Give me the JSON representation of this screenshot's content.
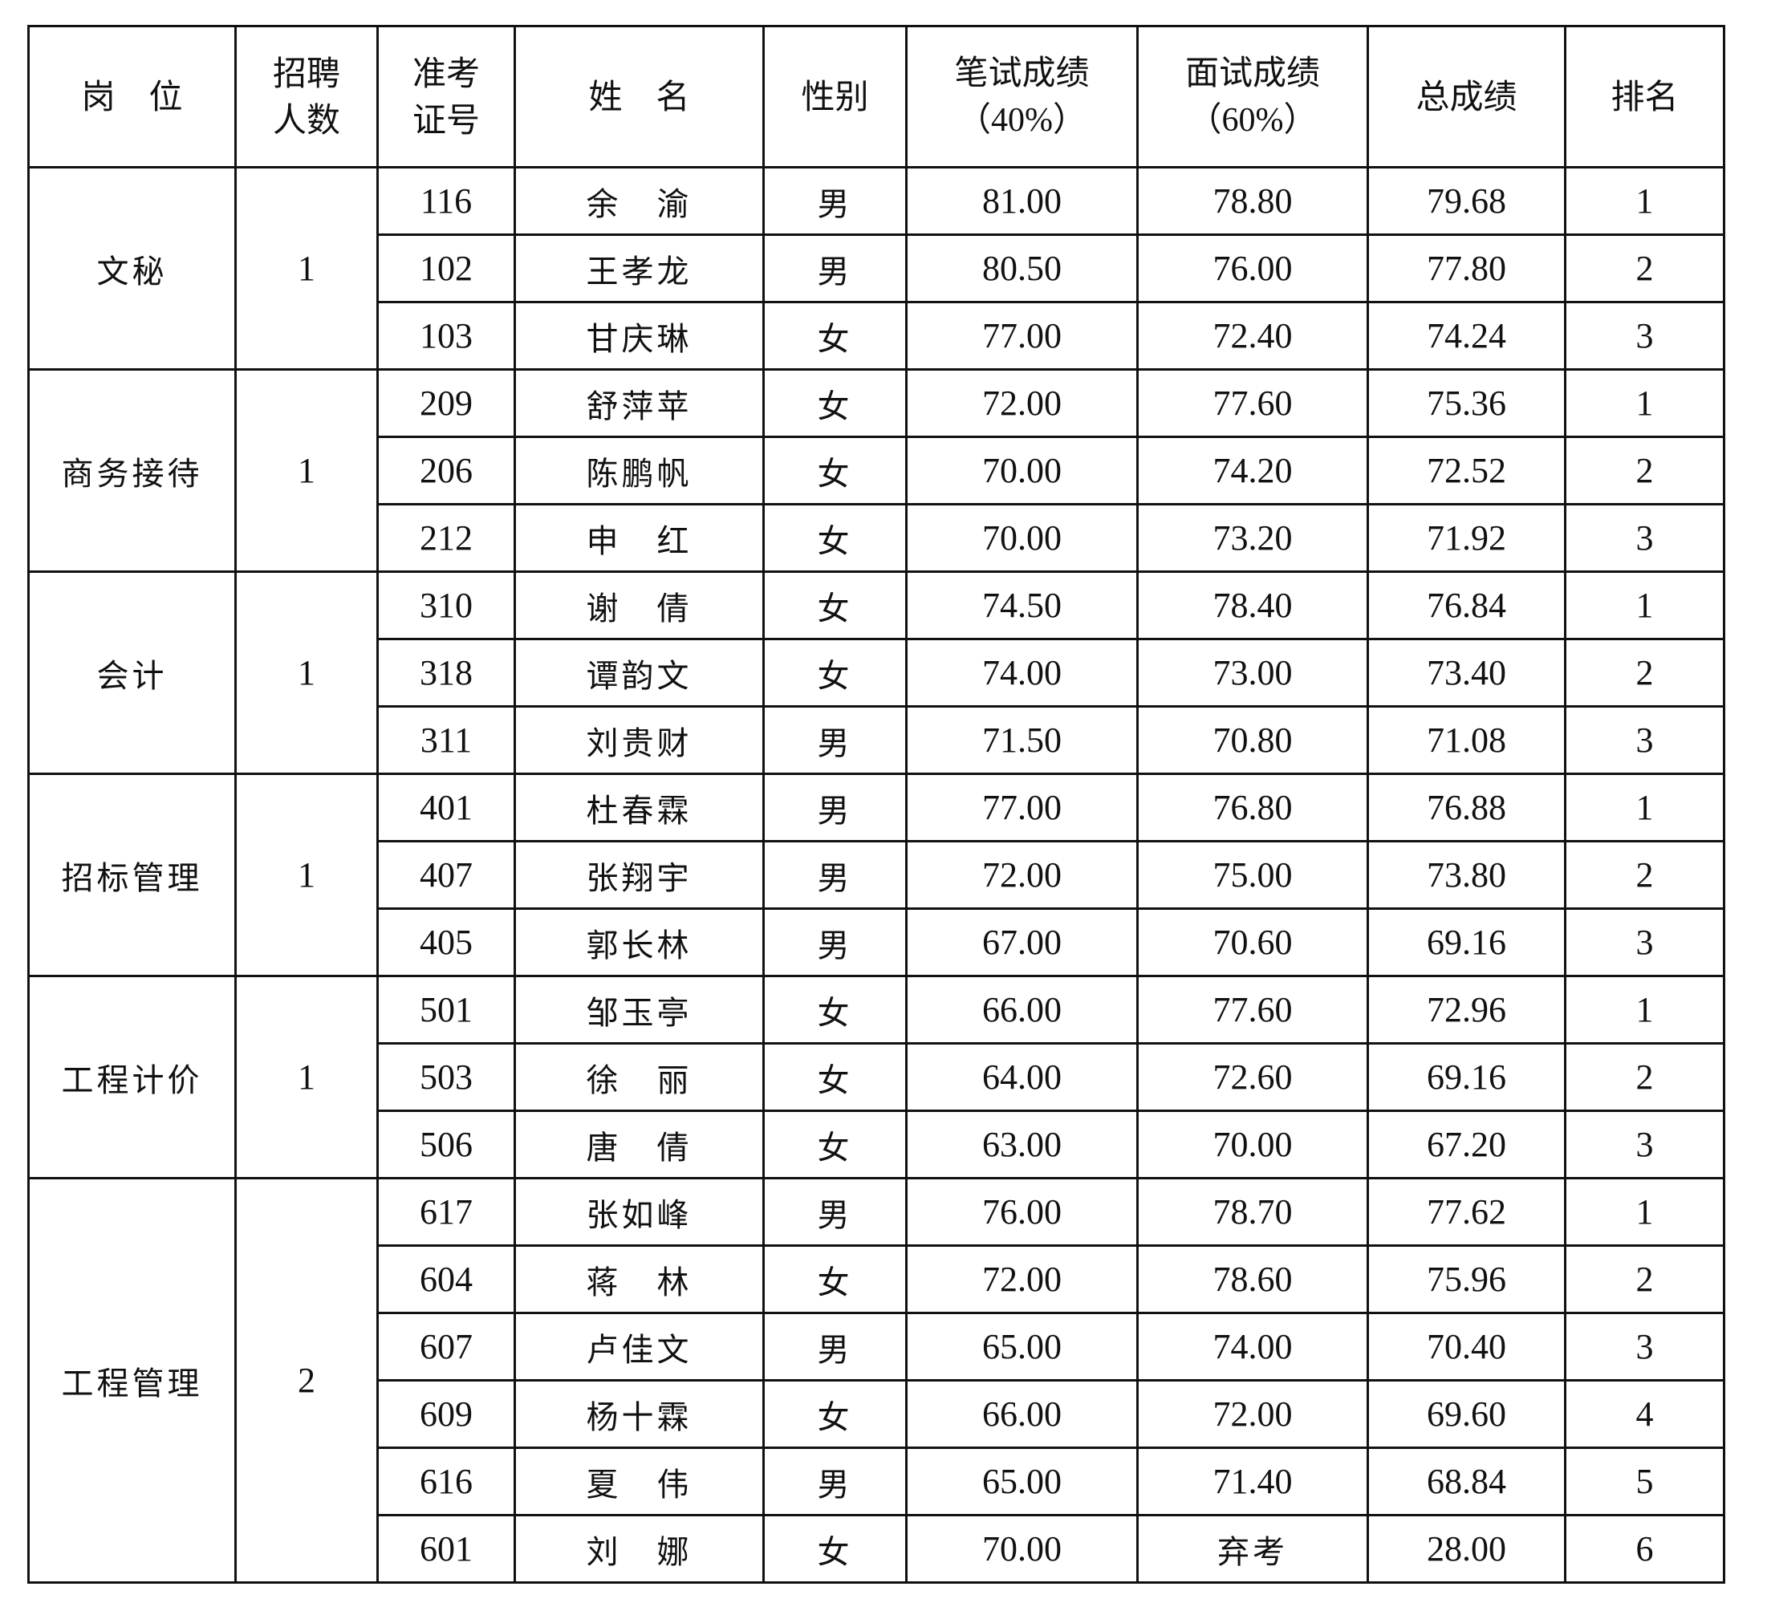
{
  "headers": {
    "position": "岗　位",
    "quota": [
      "招聘",
      "人数"
    ],
    "exam_no": [
      "准考",
      "证号"
    ],
    "name": "姓　名",
    "gender": "性别",
    "written": [
      "笔试成绩",
      "（40%）"
    ],
    "interview": [
      "面试成绩",
      "（60%）"
    ],
    "total": "总成绩",
    "rank": "排名"
  },
  "groups": [
    {
      "position": "文秘",
      "quota": "1",
      "rows": [
        {
          "no": "116",
          "name": "余　渝",
          "gender": "男",
          "written": "81.00",
          "interview": "78.80",
          "total": "79.68",
          "rank": "1"
        },
        {
          "no": "102",
          "name": "王孝龙",
          "gender": "男",
          "written": "80.50",
          "interview": "76.00",
          "total": "77.80",
          "rank": "2"
        },
        {
          "no": "103",
          "name": "甘庆琳",
          "gender": "女",
          "written": "77.00",
          "interview": "72.40",
          "total": "74.24",
          "rank": "3"
        }
      ]
    },
    {
      "position": "商务接待",
      "quota": "1",
      "rows": [
        {
          "no": "209",
          "name": "舒萍苹",
          "gender": "女",
          "written": "72.00",
          "interview": "77.60",
          "total": "75.36",
          "rank": "1"
        },
        {
          "no": "206",
          "name": "陈鹏帆",
          "gender": "女",
          "written": "70.00",
          "interview": "74.20",
          "total": "72.52",
          "rank": "2"
        },
        {
          "no": "212",
          "name": "申　红",
          "gender": "女",
          "written": "70.00",
          "interview": "73.20",
          "total": "71.92",
          "rank": "3"
        }
      ]
    },
    {
      "position": "会计",
      "quota": "1",
      "rows": [
        {
          "no": "310",
          "name": "谢　倩",
          "gender": "女",
          "written": "74.50",
          "interview": "78.40",
          "total": "76.84",
          "rank": "1"
        },
        {
          "no": "318",
          "name": "谭韵文",
          "gender": "女",
          "written": "74.00",
          "interview": "73.00",
          "total": "73.40",
          "rank": "2"
        },
        {
          "no": "311",
          "name": "刘贵财",
          "gender": "男",
          "written": "71.50",
          "interview": "70.80",
          "total": "71.08",
          "rank": "3"
        }
      ]
    },
    {
      "position": "招标管理",
      "quota": "1",
      "rows": [
        {
          "no": "401",
          "name": "杜春霖",
          "gender": "男",
          "written": "77.00",
          "interview": "76.80",
          "total": "76.88",
          "rank": "1"
        },
        {
          "no": "407",
          "name": "张翔宇",
          "gender": "男",
          "written": "72.00",
          "interview": "75.00",
          "total": "73.80",
          "rank": "2"
        },
        {
          "no": "405",
          "name": "郭长林",
          "gender": "男",
          "written": "67.00",
          "interview": "70.60",
          "total": "69.16",
          "rank": "3"
        }
      ]
    },
    {
      "position": "工程计价",
      "quota": "1",
      "rows": [
        {
          "no": "501",
          "name": "邹玉亭",
          "gender": "女",
          "written": "66.00",
          "interview": "77.60",
          "total": "72.96",
          "rank": "1"
        },
        {
          "no": "503",
          "name": "徐　丽",
          "gender": "女",
          "written": "64.00",
          "interview": "72.60",
          "total": "69.16",
          "rank": "2"
        },
        {
          "no": "506",
          "name": "唐　倩",
          "gender": "女",
          "written": "63.00",
          "interview": "70.00",
          "total": "67.20",
          "rank": "3"
        }
      ]
    },
    {
      "position": "工程管理",
      "quota": "2",
      "rows": [
        {
          "no": "617",
          "name": "张如峰",
          "gender": "男",
          "written": "76.00",
          "interview": "78.70",
          "total": "77.62",
          "rank": "1"
        },
        {
          "no": "604",
          "name": "蒋　林",
          "gender": "女",
          "written": "72.00",
          "interview": "78.60",
          "total": "75.96",
          "rank": "2"
        },
        {
          "no": "607",
          "name": "卢佳文",
          "gender": "男",
          "written": "65.00",
          "interview": "74.00",
          "total": "70.40",
          "rank": "3"
        },
        {
          "no": "609",
          "name": "杨十霖",
          "gender": "女",
          "written": "66.00",
          "interview": "72.00",
          "total": "69.60",
          "rank": "4"
        },
        {
          "no": "616",
          "name": "夏　伟",
          "gender": "男",
          "written": "65.00",
          "interview": "71.40",
          "total": "68.84",
          "rank": "5"
        },
        {
          "no": "601",
          "name": "刘　娜",
          "gender": "女",
          "written": "70.00",
          "interview": "弃考",
          "total": "28.00",
          "rank": "6"
        }
      ]
    }
  ]
}
